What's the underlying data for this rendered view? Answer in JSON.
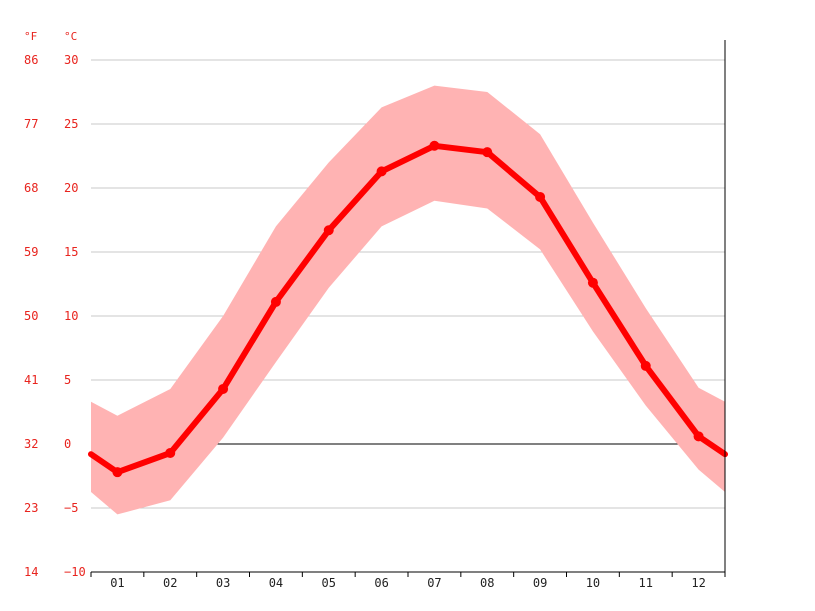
{
  "chart_data": {
    "type": "line",
    "units": {
      "fahrenheit": "°F",
      "celsius": "°C"
    },
    "categories": [
      "01",
      "02",
      "03",
      "04",
      "05",
      "06",
      "07",
      "08",
      "09",
      "10",
      "11",
      "12"
    ],
    "y_ticks_c": [
      30,
      25,
      20,
      15,
      10,
      5,
      0,
      -5,
      -10
    ],
    "y_tick_labels_c": [
      "30",
      "25",
      "20",
      "15",
      "10",
      "5",
      "0",
      "−5",
      "−10"
    ],
    "y_tick_labels_f": [
      "86",
      "77",
      "68",
      "59",
      "50",
      "41",
      "32",
      "23",
      "14"
    ],
    "ylim": [
      -10,
      30
    ],
    "grid": true,
    "series": [
      {
        "values": [
          -2.2,
          -0.7,
          4.3,
          11.1,
          16.7,
          21.3,
          23.3,
          22.8,
          19.3,
          12.6,
          6.1,
          0.6
        ]
      },
      {
        "values": [
          2.2,
          4.3,
          10.0,
          17.0,
          22.0,
          26.3,
          28.0,
          27.5,
          24.2,
          17.3,
          10.6,
          4.4
        ]
      },
      {
        "values": [
          -5.5,
          -4.4,
          0.5,
          6.4,
          12.2,
          17.0,
          19.0,
          18.4,
          15.2,
          8.8,
          3.0,
          -2.0
        ]
      }
    ],
    "colors": {
      "line": "#ff0000",
      "band": "#ffb3b3",
      "grid": "#c8c8c8",
      "zero_line": "#000000",
      "label": "#e8241e"
    }
  }
}
